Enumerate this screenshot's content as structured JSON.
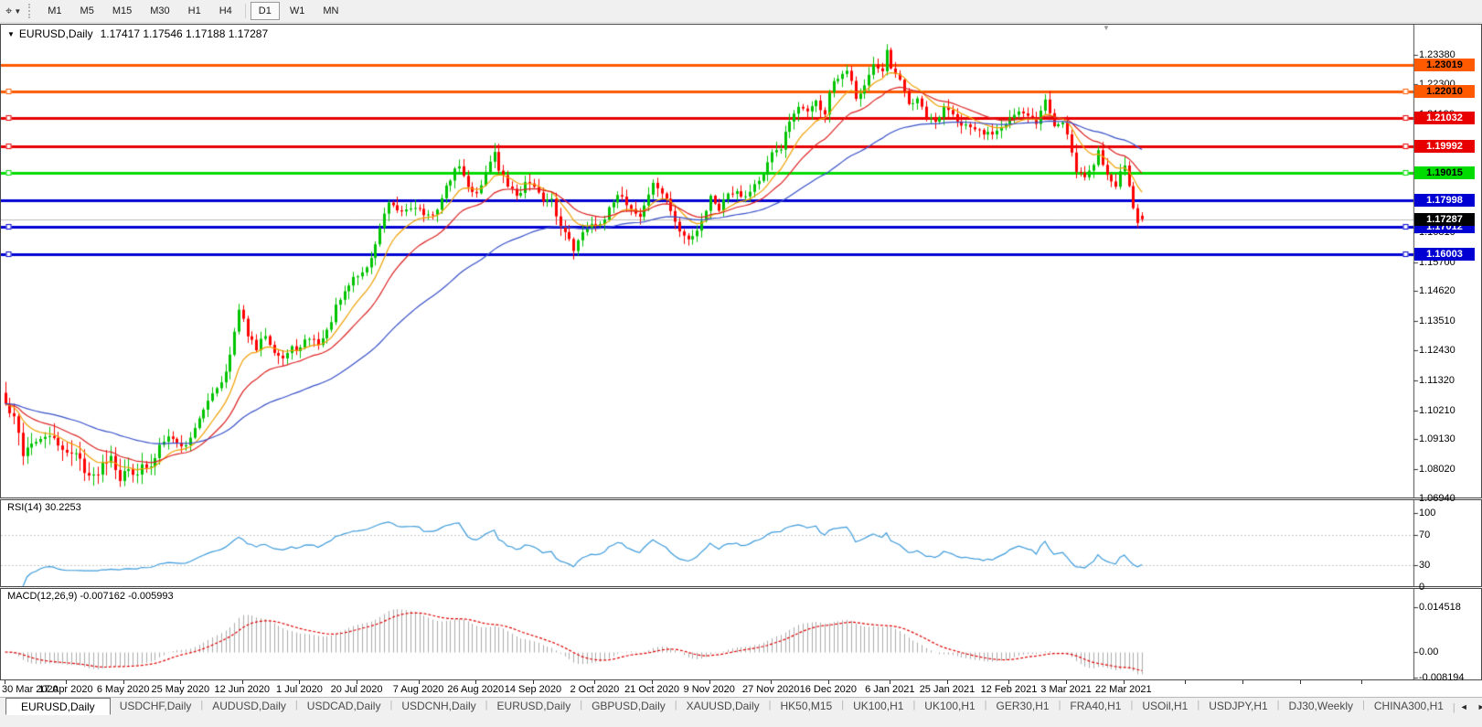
{
  "toolbar": {
    "tool_icon": "chart-cursor",
    "timeframes": [
      {
        "label": "M1",
        "active": false
      },
      {
        "label": "M5",
        "active": false
      },
      {
        "label": "M15",
        "active": false
      },
      {
        "label": "M30",
        "active": false
      },
      {
        "label": "H1",
        "active": false
      },
      {
        "label": "H4",
        "active": false
      },
      {
        "label": "D1",
        "active": true
      },
      {
        "label": "W1",
        "active": false
      },
      {
        "label": "MN",
        "active": false
      }
    ]
  },
  "chart": {
    "symbol_label": "EURUSD,Daily",
    "ohlc_label": "1.17417 1.17546 1.17188 1.17287",
    "dropdown_icon": "▼",
    "shift_marker": "▼"
  },
  "chart_data": {
    "type": "candlestick",
    "symbol": "EURUSD",
    "timeframe": "Daily",
    "last_candle": {
      "open": 1.17417,
      "high": 1.17546,
      "low": 1.17188,
      "close": 1.17287
    },
    "current_price": 1.17287,
    "num_candles": 259,
    "ylim": [
      1.0635,
      1.2395
    ],
    "up_color": "#00C400",
    "down_color": "#FF0000",
    "close_anchors": [
      [
        0,
        1.104
      ],
      [
        2,
        1.098
      ],
      [
        4,
        1.086
      ],
      [
        6,
        1.091
      ],
      [
        8,
        1.0895
      ],
      [
        10,
        1.0935
      ],
      [
        12,
        1.087
      ],
      [
        14,
        1.088
      ],
      [
        16,
        1.0855
      ],
      [
        18,
        1.081
      ],
      [
        20,
        1.077
      ],
      [
        22,
        1.083
      ],
      [
        24,
        1.0875
      ],
      [
        26,
        1.079
      ],
      [
        28,
        1.08
      ],
      [
        31,
        1.0815
      ],
      [
        33,
        1.0795
      ],
      [
        35,
        1.0895
      ],
      [
        37,
        1.0945
      ],
      [
        39,
        1.09
      ],
      [
        41,
        1.089
      ],
      [
        43,
        1.0965
      ],
      [
        45,
        1.101
      ],
      [
        47,
        1.109
      ],
      [
        49,
        1.1135
      ],
      [
        51,
        1.123
      ],
      [
        53,
        1.1385
      ],
      [
        55,
        1.13
      ],
      [
        57,
        1.124
      ],
      [
        59,
        1.13
      ],
      [
        61,
        1.1255
      ],
      [
        63,
        1.122
      ],
      [
        65,
        1.1245
      ],
      [
        67,
        1.125
      ],
      [
        69,
        1.1285
      ],
      [
        71,
        1.127
      ],
      [
        73,
        1.131
      ],
      [
        75,
        1.14
      ],
      [
        77,
        1.1445
      ],
      [
        79,
        1.151
      ],
      [
        81,
        1.153
      ],
      [
        83,
        1.158
      ],
      [
        85,
        1.17
      ],
      [
        87,
        1.178
      ],
      [
        89,
        1.174
      ],
      [
        91,
        1.176
      ],
      [
        93,
        1.1785
      ],
      [
        95,
        1.175
      ],
      [
        97,
        1.173
      ],
      [
        99,
        1.181
      ],
      [
        101,
        1.188
      ],
      [
        103,
        1.193
      ],
      [
        105,
        1.184
      ],
      [
        107,
        1.183
      ],
      [
        109,
        1.1905
      ],
      [
        111,
        1.199
      ],
      [
        112,
        1.191
      ],
      [
        114,
        1.185
      ],
      [
        116,
        1.1815
      ],
      [
        118,
        1.186
      ],
      [
        120,
        1.1865
      ],
      [
        122,
        1.179
      ],
      [
        124,
        1.1785
      ],
      [
        126,
        1.1695
      ],
      [
        128,
        1.1665
      ],
      [
        129,
        1.163
      ],
      [
        131,
        1.1675
      ],
      [
        133,
        1.172
      ],
      [
        134,
        1.1715
      ],
      [
        136,
        1.1745
      ],
      [
        138,
        1.1785
      ],
      [
        140,
        1.1815
      ],
      [
        142,
        1.177
      ],
      [
        144,
        1.1745
      ],
      [
        146,
        1.1825
      ],
      [
        147,
        1.186
      ],
      [
        149,
        1.183
      ],
      [
        151,
        1.176
      ],
      [
        153,
        1.168
      ],
      [
        155,
        1.165
      ],
      [
        157,
        1.1695
      ],
      [
        159,
        1.177
      ],
      [
        160,
        1.1815
      ],
      [
        162,
        1.1775
      ],
      [
        164,
        1.183
      ],
      [
        166,
        1.1845
      ],
      [
        168,
        1.182
      ],
      [
        170,
        1.1865
      ],
      [
        172,
        1.189
      ],
      [
        174,
        1.196
      ],
      [
        176,
        1.2
      ],
      [
        178,
        1.2085
      ],
      [
        180,
        1.212
      ],
      [
        182,
        1.214
      ],
      [
        184,
        1.2155
      ],
      [
        186,
        1.2125
      ],
      [
        187,
        1.22
      ],
      [
        189,
        1.224
      ],
      [
        191,
        1.2255
      ],
      [
        193,
        1.2185
      ],
      [
        195,
        1.225
      ],
      [
        197,
        1.23
      ],
      [
        199,
        1.225
      ],
      [
        200,
        1.233
      ],
      [
        201,
        1.227
      ],
      [
        203,
        1.222
      ],
      [
        205,
        1.2155
      ],
      [
        207,
        1.2165
      ],
      [
        209,
        1.2105
      ],
      [
        211,
        1.208
      ],
      [
        213,
        1.2135
      ],
      [
        214,
        1.214
      ],
      [
        216,
        1.211
      ],
      [
        218,
        1.2085
      ],
      [
        220,
        1.2045
      ],
      [
        222,
        1.2035
      ],
      [
        224,
        1.205
      ],
      [
        226,
        1.2085
      ],
      [
        228,
        1.212
      ],
      [
        230,
        1.213
      ],
      [
        232,
        1.21
      ],
      [
        234,
        1.2085
      ],
      [
        236,
        1.217
      ],
      [
        238,
        1.2075
      ],
      [
        240,
        1.209
      ],
      [
        241,
        1.205
      ],
      [
        243,
        1.192
      ],
      [
        245,
        1.1895
      ],
      [
        247,
        1.193
      ],
      [
        248,
        1.198
      ],
      [
        249,
        1.193
      ],
      [
        250,
        1.1905
      ],
      [
        251,
        1.189
      ],
      [
        252,
        1.187
      ],
      [
        253,
        1.191
      ],
      [
        254,
        1.1935
      ],
      [
        255,
        1.185
      ],
      [
        256,
        1.177
      ],
      [
        257,
        1.1715
      ],
      [
        258,
        1.17287
      ]
    ],
    "ma_lines": [
      {
        "name": "fast-ma",
        "period": 10,
        "color": "#F0A000"
      },
      {
        "name": "mid-ma",
        "period": 21,
        "color": "#DD2222"
      },
      {
        "name": "slow-ma",
        "period": 55,
        "color": "#3850C8"
      }
    ],
    "hlines": [
      {
        "price": 1.23019,
        "label": "1.23019",
        "color": "#FF5A00",
        "text_color": "#000000",
        "marker": false
      },
      {
        "price": 1.2201,
        "label": "1.22010",
        "color": "#FF5A00",
        "text_color": "#000000",
        "marker": true
      },
      {
        "price": 1.21032,
        "label": "1.21032",
        "color": "#E80000",
        "text_color": "#FFFFFF",
        "marker": true
      },
      {
        "price": 1.19992,
        "label": "1.19992",
        "color": "#E80000",
        "text_color": "#FFFFFF",
        "marker": true
      },
      {
        "price": 1.19015,
        "label": "1.19015",
        "color": "#00DC00",
        "text_color": "#000000",
        "marker": true
      },
      {
        "price": 1.17998,
        "label": "1.17998",
        "color": "#0000D2",
        "text_color": "#FFFFFF",
        "marker": false
      },
      {
        "price": 1.17012,
        "label": "1.17012",
        "color": "#0000D2",
        "text_color": "#FFFFFF",
        "marker": true
      },
      {
        "price": 1.16003,
        "label": "1.16003",
        "color": "#0000D2",
        "text_color": "#FFFFFF",
        "marker": true
      }
    ],
    "price_tag": {
      "label": "1.17287",
      "bg": "#000000",
      "text_color": "#FFFFFF"
    },
    "y_ticks": [
      "1.23380",
      "1.22300",
      "1.21190",
      "1.17890",
      "1.16810",
      "1.15700",
      "1.14620",
      "1.13510",
      "1.12430",
      "1.11320",
      "1.10210",
      "1.09130",
      "1.08020",
      "1.06940"
    ],
    "x_labels": [
      {
        "text": "30 Mar 2020",
        "day": 0
      },
      {
        "text": "17 Apr 2020",
        "day": 14
      },
      {
        "text": "6 May 2020",
        "day": 27
      },
      {
        "text": "25 May 2020",
        "day": 40
      },
      {
        "text": "12 Jun 2020",
        "day": 54
      },
      {
        "text": "1 Jul 2020",
        "day": 67
      },
      {
        "text": "20 Jul 2020",
        "day": 80
      },
      {
        "text": "7 Aug 2020",
        "day": 94
      },
      {
        "text": "26 Aug 2020",
        "day": 107
      },
      {
        "text": "14 Sep 2020",
        "day": 120
      },
      {
        "text": "2 Oct 2020",
        "day": 134
      },
      {
        "text": "21 Oct 2020",
        "day": 147
      },
      {
        "text": "9 Nov 2020",
        "day": 160
      },
      {
        "text": "27 Nov 2020",
        "day": 174
      },
      {
        "text": "16 Dec 2020",
        "day": 187
      },
      {
        "text": "6 Jan 2021",
        "day": 201
      },
      {
        "text": "25 Jan 2021",
        "day": 214
      },
      {
        "text": "12 Feb 2021",
        "day": 228
      },
      {
        "text": "3 Mar 2021",
        "day": 241
      },
      {
        "text": "22 Mar 2021",
        "day": 254
      }
    ],
    "x_extra_tick_days": [
      268,
      281,
      294,
      308
    ],
    "rsi": {
      "label": "RSI(14) 30.2253",
      "period": 14,
      "last_value": 30.2253,
      "levels": [
        70,
        30
      ],
      "ticks": [
        {
          "v": 100,
          "text": "100"
        },
        {
          "v": 70,
          "text": "70"
        },
        {
          "v": 30,
          "text": "30"
        },
        {
          "v": 0,
          "text": "0"
        }
      ],
      "color": "#3E9CDB"
    },
    "macd": {
      "label": "MACD(12,26,9) -0.007162 -0.005993",
      "fast": 12,
      "slow": 26,
      "signal": 9,
      "last_macd": -0.007162,
      "last_signal": -0.005993,
      "ticks": [
        {
          "v": 0.014518,
          "text": "0.014518"
        },
        {
          "v": 0,
          "text": "0.00"
        },
        {
          "v": -0.008194,
          "text": "-0.008194"
        }
      ],
      "hist_color": "#ABABAB",
      "signal_color": "#E00000"
    }
  },
  "tabs": {
    "items": [
      {
        "label": "EURUSD,Daily",
        "active": true
      },
      {
        "label": "USDCHF,Daily",
        "active": false
      },
      {
        "label": "AUDUSD,Daily",
        "active": false
      },
      {
        "label": "USDCAD,Daily",
        "active": false
      },
      {
        "label": "USDCNH,Daily",
        "active": false
      },
      {
        "label": "EURUSD,Daily",
        "active": false
      },
      {
        "label": "GBPUSD,Daily",
        "active": false
      },
      {
        "label": "XAUUSD,Daily",
        "active": false
      },
      {
        "label": "HK50,M15",
        "active": false
      },
      {
        "label": "UK100,H1",
        "active": false
      },
      {
        "label": "UK100,H1",
        "active": false
      },
      {
        "label": "GER30,H1",
        "active": false
      },
      {
        "label": "FRA40,H1",
        "active": false
      },
      {
        "label": "USOil,H1",
        "active": false
      },
      {
        "label": "USDJPY,H1",
        "active": false
      },
      {
        "label": "DJ30,Weekly",
        "active": false
      },
      {
        "label": "CHINA300,H1",
        "active": false
      }
    ],
    "scroll_left": "◄",
    "scroll_right": "►"
  }
}
